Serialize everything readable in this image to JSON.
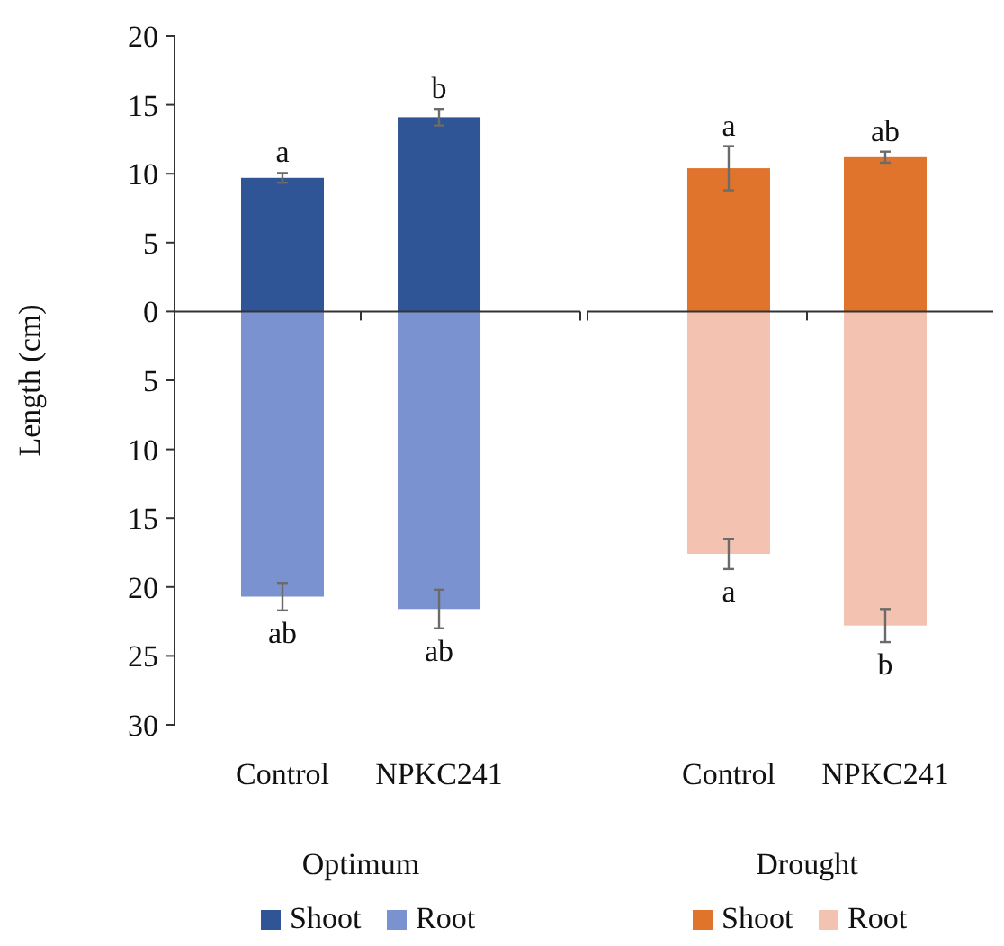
{
  "chart_data": {
    "type": "bar",
    "ylabel": "Length (cm)",
    "categories": [
      "Control",
      "NPKC241",
      "Control",
      "NPKC241"
    ],
    "series": [
      {
        "name": "Shoot",
        "color": "#2f5597",
        "values": [
          9.7,
          14.1,
          null,
          null
        ],
        "errors": [
          0.35,
          0.6,
          null,
          null
        ],
        "value_labels": [
          "a",
          "b",
          null,
          null
        ]
      },
      {
        "name": "Root",
        "color": "#7a93d0",
        "values": [
          -20.7,
          -21.6,
          null,
          null
        ],
        "errors": [
          1.0,
          1.4,
          null,
          null
        ],
        "value_labels": [
          "ab",
          "ab",
          null,
          null
        ]
      },
      {
        "name": "Shoot",
        "color": "#e0742c",
        "values": [
          null,
          null,
          10.4,
          11.2
        ],
        "errors": [
          null,
          null,
          1.6,
          0.4
        ],
        "value_labels": [
          null,
          null,
          "a",
          "ab"
        ]
      },
      {
        "name": "Root",
        "color": "#f4c2b1",
        "values": [
          null,
          null,
          -17.6,
          -22.8
        ],
        "errors": [
          null,
          null,
          1.1,
          1.2
        ],
        "value_labels": [
          null,
          null,
          "a",
          "b"
        ]
      }
    ],
    "stacked": true,
    "ylim": [
      -30,
      20
    ],
    "yticks": [
      {
        "value": -30,
        "label": "30"
      },
      {
        "value": -25,
        "label": "25"
      },
      {
        "value": -20,
        "label": "20"
      },
      {
        "value": -15,
        "label": "15"
      },
      {
        "value": -10,
        "label": "10"
      },
      {
        "value": -5,
        "label": "5"
      },
      0,
      5,
      10,
      15,
      20
    ],
    "annotations": [
      "Optimum",
      "Drought"
    ],
    "legend": "bottom"
  }
}
